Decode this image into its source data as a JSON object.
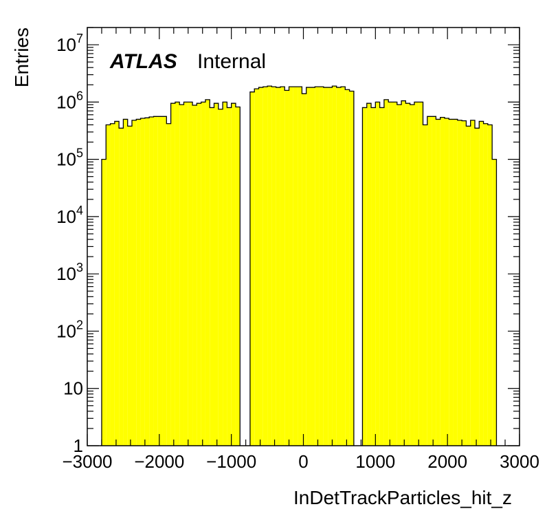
{
  "chart_data": {
    "type": "bar",
    "subtype": "histogram",
    "xlabel": "InDetTrackParticles_hit_z",
    "ylabel": "Entries",
    "xlim": [
      -3000,
      3000
    ],
    "ylim": [
      1,
      20000000
    ],
    "yscale": "log",
    "xticks": [
      -3000,
      -2000,
      -1000,
      0,
      1000,
      2000,
      3000
    ],
    "xtick_labels": [
      "−3000",
      "−2000",
      "−1000",
      "0",
      "1000",
      "2000",
      "3000"
    ],
    "yticks": [
      {
        "value": 1,
        "base": "1",
        "exp": ""
      },
      {
        "value": 10,
        "base": "10",
        "exp": ""
      },
      {
        "value": 100,
        "base": "10",
        "exp": "2"
      },
      {
        "value": 1000,
        "base": "10",
        "exp": "3"
      },
      {
        "value": 10000,
        "base": "10",
        "exp": "4"
      },
      {
        "value": 100000,
        "base": "10",
        "exp": "5"
      },
      {
        "value": 1000000,
        "base": "10",
        "exp": "6"
      },
      {
        "value": 10000000,
        "base": "10",
        "exp": "7"
      }
    ],
    "fill_color": "#ffff00",
    "line_color": "#000000",
    "grid": false,
    "series": [
      {
        "x_start": [
          -2800,
          -2740,
          -2680,
          -2620,
          -2560,
          -2500,
          -2440,
          -2380,
          -2320,
          -2260,
          -2200,
          -2140,
          -2080,
          -2020,
          -1960,
          -1900,
          -1840,
          -1780,
          -1720,
          -1660,
          -1600,
          -1540,
          -1480,
          -1420,
          -1360,
          -1300,
          -1240,
          -1180,
          -1120,
          -1060,
          -1000,
          -940,
          -880
        ],
        "x_end": [
          -2740,
          -2680,
          -2620,
          -2560,
          -2500,
          -2440,
          -2380,
          -2320,
          -2260,
          -2200,
          -2140,
          -2080,
          -2020,
          -1960,
          -1900,
          -1840,
          -1780,
          -1720,
          -1660,
          -1600,
          -1540,
          -1480,
          -1420,
          -1360,
          -1300,
          -1240,
          -1180,
          -1120,
          -1060,
          -1000,
          -940,
          -880,
          -820
        ],
        "values": [
          100000,
          400000,
          420000,
          460000,
          350000,
          500000,
          380000,
          480000,
          500000,
          520000,
          530000,
          550000,
          560000,
          560000,
          560000,
          420000,
          950000,
          1000000,
          900000,
          1000000,
          1000000,
          880000,
          950000,
          1000000,
          1100000,
          800000,
          950000,
          750000,
          1000000,
          800000,
          950000,
          820000,
          0
        ]
      },
      {
        "x_start": [
          -740,
          -680,
          -620,
          -560,
          -500,
          -440,
          -380,
          -320,
          -260,
          -200,
          -140,
          -80,
          -20,
          40,
          100,
          160,
          220,
          280,
          340,
          400,
          460,
          520,
          580,
          640
        ],
        "x_end": [
          -680,
          -620,
          -560,
          -500,
          -440,
          -380,
          -320,
          -260,
          -200,
          -140,
          -80,
          -20,
          40,
          100,
          160,
          220,
          280,
          340,
          400,
          460,
          520,
          580,
          640,
          700
        ],
        "values": [
          1500000,
          1700000,
          1800000,
          1850000,
          1900000,
          1850000,
          1800000,
          1850000,
          1600000,
          1850000,
          1850000,
          1850000,
          1400000,
          1800000,
          1800000,
          1850000,
          1850000,
          1800000,
          1800000,
          1900000,
          1800000,
          1850000,
          1650000,
          1550000
        ]
      },
      {
        "x_start": [
          820,
          880,
          940,
          1000,
          1060,
          1120,
          1180,
          1240,
          1300,
          1360,
          1420,
          1480,
          1540,
          1600,
          1660,
          1720,
          1780,
          1840,
          1900,
          1960,
          2020,
          2080,
          2140,
          2200,
          2260,
          2320,
          2380,
          2440,
          2500,
          2560,
          2620,
          2680,
          2740
        ],
        "x_end": [
          880,
          940,
          1000,
          1060,
          1120,
          1180,
          1240,
          1300,
          1360,
          1420,
          1480,
          1540,
          1600,
          1660,
          1720,
          1780,
          1840,
          1900,
          1960,
          2020,
          2080,
          2140,
          2200,
          2260,
          2320,
          2380,
          2440,
          2500,
          2560,
          2620,
          2680,
          2740,
          2800
        ],
        "values": [
          800000,
          950000,
          800000,
          1000000,
          800000,
          1100000,
          1000000,
          1000000,
          900000,
          1050000,
          950000,
          900000,
          1000000,
          1000000,
          400000,
          560000,
          560000,
          500000,
          540000,
          520000,
          500000,
          500000,
          480000,
          470000,
          380000,
          480000,
          350000,
          460000,
          420000,
          400000,
          100000,
          0,
          0
        ]
      }
    ]
  },
  "annotation": {
    "atlas": "ATLAS",
    "internal": "Internal"
  }
}
